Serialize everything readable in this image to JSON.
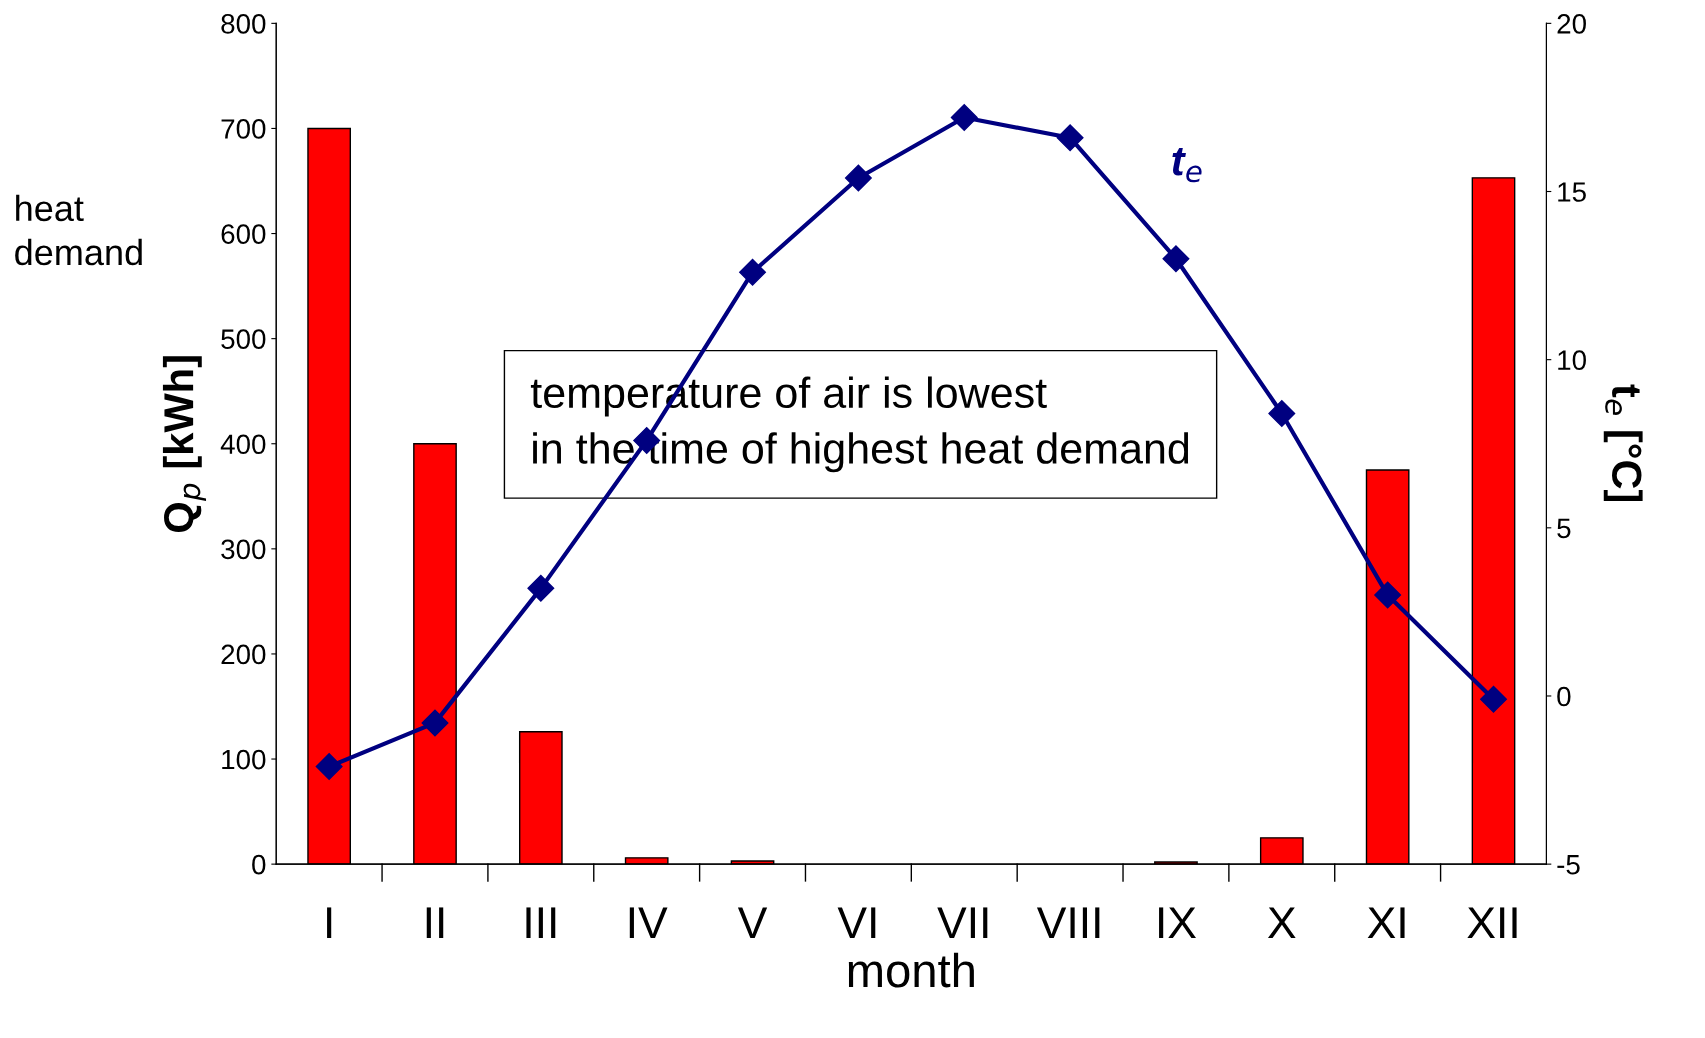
{
  "chart_data": {
    "type": "bar",
    "xlabel": "month",
    "ylabel": "Q$_{p}$ [kWh]",
    "y2label": "t$_{e}$ [°C]",
    "categories": [
      "I",
      "II",
      "III",
      "IV",
      "V",
      "VI",
      "VII",
      "VIII",
      "IX",
      "X",
      "XI",
      "XII"
    ],
    "series": [
      {
        "color": "#ff0000",
        "values": [
          700,
          400,
          126,
          6,
          3,
          0,
          0,
          0,
          2,
          25,
          375,
          653
        ]
      },
      {
        "type": "line",
        "name": "t$_{e}$",
        "axis": "y2",
        "color": "#000080",
        "marker": "diamond",
        "line_style": "solid",
        "values": [
          -2.1,
          -0.8,
          3.2,
          7.6,
          12.6,
          15.4,
          17.2,
          16.6,
          13.0,
          8.4,
          3.0,
          -0.1
        ]
      }
    ],
    "ylim": [
      0,
      800
    ],
    "yticks": [
      0,
      100,
      200,
      300,
      400,
      500,
      600,
      700,
      800
    ],
    "y2lim": [
      -5,
      20
    ],
    "y2ticks": [
      -5,
      0,
      5,
      10,
      15,
      20
    ],
    "grid": false,
    "legend": false,
    "annotations": [
      "heat\ndemand",
      "temperature of air is lowest\nin the time of highest heat demand"
    ]
  }
}
